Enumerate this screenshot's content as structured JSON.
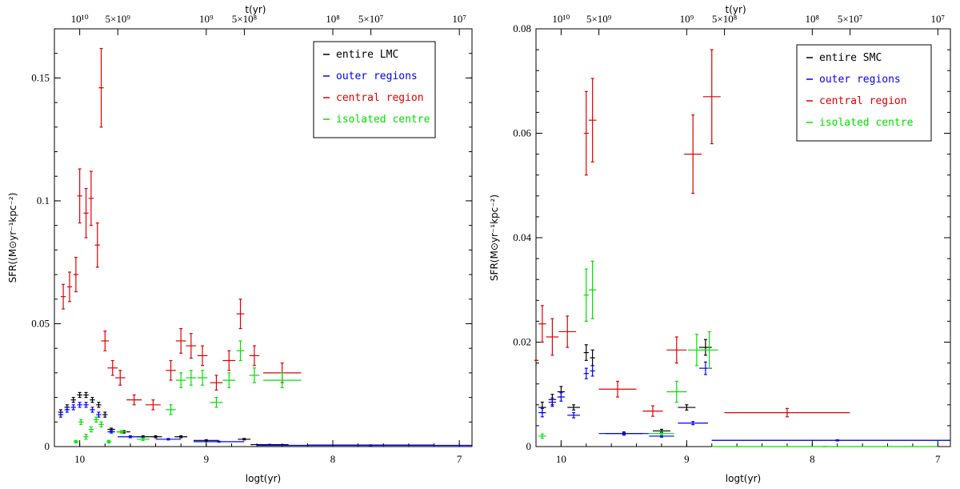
{
  "chart_data": [
    {
      "type": "scatter",
      "title": "",
      "xlabel": "logt(yr)",
      "ylabel": "SFR((M⊙yr⁻¹kpc⁻²)",
      "top_axis_label": "t(yr)",
      "top_ticks": [
        {
          "pos": 10.0,
          "label": "10¹⁰"
        },
        {
          "pos": 9.699,
          "label": "5×10⁹"
        },
        {
          "pos": 9.0,
          "label": "10⁹"
        },
        {
          "pos": 8.699,
          "label": "5×10⁸"
        },
        {
          "pos": 8.0,
          "label": "10⁸"
        },
        {
          "pos": 7.699,
          "label": "5×10⁷"
        },
        {
          "pos": 7.0,
          "label": "10⁷"
        }
      ],
      "xlim": [
        10.2,
        6.9
      ],
      "ylim": [
        0,
        0.17
      ],
      "x_ticks": [
        {
          "v": 10,
          "label": "10"
        },
        {
          "v": 9,
          "label": "9"
        },
        {
          "v": 8,
          "label": "8"
        },
        {
          "v": 7,
          "label": "7"
        }
      ],
      "y_ticks": [
        {
          "v": 0,
          "label": "0"
        },
        {
          "v": 0.05,
          "label": "0.05"
        },
        {
          "v": 0.1,
          "label": "0.1"
        },
        {
          "v": 0.15,
          "label": "0.15"
        }
      ],
      "legend_position": "top-right",
      "series": [
        {
          "name": "entire LMC",
          "color": "#000000",
          "points": [
            {
              "x": 10.15,
              "y": 0.014,
              "xerr": 0.02,
              "yerr": 0.001
            },
            {
              "x": 10.1,
              "y": 0.016,
              "xerr": 0.02,
              "yerr": 0.001
            },
            {
              "x": 10.05,
              "y": 0.019,
              "xerr": 0.02,
              "yerr": 0.001
            },
            {
              "x": 10.0,
              "y": 0.021,
              "xerr": 0.02,
              "yerr": 0.001
            },
            {
              "x": 9.95,
              "y": 0.021,
              "xerr": 0.02,
              "yerr": 0.001
            },
            {
              "x": 9.9,
              "y": 0.019,
              "xerr": 0.02,
              "yerr": 0.001
            },
            {
              "x": 9.85,
              "y": 0.017,
              "xerr": 0.02,
              "yerr": 0.001
            },
            {
              "x": 9.8,
              "y": 0.013,
              "xerr": 0.02,
              "yerr": 0.001
            },
            {
              "x": 9.75,
              "y": 0.007,
              "xerr": 0.03,
              "yerr": 0.0005
            },
            {
              "x": 9.65,
              "y": 0.006,
              "xerr": 0.05,
              "yerr": 0.0005
            },
            {
              "x": 9.5,
              "y": 0.004,
              "xerr": 0.05,
              "yerr": 0.0004
            },
            {
              "x": 9.4,
              "y": 0.004,
              "xerr": 0.05,
              "yerr": 0.0004
            },
            {
              "x": 9.2,
              "y": 0.004,
              "xerr": 0.05,
              "yerr": 0.0004
            },
            {
              "x": 9.0,
              "y": 0.0025,
              "xerr": 0.1,
              "yerr": 0.0003
            },
            {
              "x": 8.7,
              "y": 0.003,
              "xerr": 0.05,
              "yerr": 0.0003
            },
            {
              "x": 8.5,
              "y": 0.0008,
              "xerr": 0.15,
              "yerr": 0.0001
            },
            {
              "x": 7.7,
              "y": 0.0006,
              "xerr": 0.5,
              "yerr": 0.0001
            }
          ]
        },
        {
          "name": "outer regions",
          "color": "#0000ff",
          "points": [
            {
              "x": 10.15,
              "y": 0.013,
              "xerr": 0.02,
              "yerr": 0.001
            },
            {
              "x": 10.1,
              "y": 0.015,
              "xerr": 0.02,
              "yerr": 0.001
            },
            {
              "x": 10.05,
              "y": 0.016,
              "xerr": 0.02,
              "yerr": 0.001
            },
            {
              "x": 10.0,
              "y": 0.017,
              "xerr": 0.02,
              "yerr": 0.001
            },
            {
              "x": 9.95,
              "y": 0.017,
              "xerr": 0.02,
              "yerr": 0.001
            },
            {
              "x": 9.9,
              "y": 0.015,
              "xerr": 0.02,
              "yerr": 0.001
            },
            {
              "x": 9.85,
              "y": 0.013,
              "xerr": 0.02,
              "yerr": 0.001
            },
            {
              "x": 9.75,
              "y": 0.006,
              "xerr": 0.03,
              "yerr": 0.0005
            },
            {
              "x": 9.6,
              "y": 0.004,
              "xerr": 0.1,
              "yerr": 0.0004
            },
            {
              "x": 9.3,
              "y": 0.003,
              "xerr": 0.1,
              "yerr": 0.0003
            },
            {
              "x": 8.9,
              "y": 0.002,
              "xerr": 0.2,
              "yerr": 0.0002
            },
            {
              "x": 7.7,
              "y": 0.0005,
              "xerr": 0.9,
              "yerr": 0.0001
            }
          ]
        },
        {
          "name": "central region",
          "color": "#e00000",
          "points": [
            {
              "x": 10.13,
              "y": 0.061,
              "xerr": 0.02,
              "yerr": 0.005
            },
            {
              "x": 10.08,
              "y": 0.065,
              "xerr": 0.02,
              "yerr": 0.006
            },
            {
              "x": 10.03,
              "y": 0.07,
              "xerr": 0.02,
              "yerr": 0.007
            },
            {
              "x": 10.0,
              "y": 0.102,
              "xerr": 0.02,
              "yerr": 0.011
            },
            {
              "x": 9.95,
              "y": 0.095,
              "xerr": 0.02,
              "yerr": 0.01
            },
            {
              "x": 9.91,
              "y": 0.101,
              "xerr": 0.02,
              "yerr": 0.011
            },
            {
              "x": 9.86,
              "y": 0.082,
              "xerr": 0.02,
              "yerr": 0.009
            },
            {
              "x": 9.83,
              "y": 0.146,
              "xerr": 0.02,
              "yerr": 0.016
            },
            {
              "x": 9.8,
              "y": 0.043,
              "xerr": 0.03,
              "yerr": 0.004
            },
            {
              "x": 9.74,
              "y": 0.032,
              "xerr": 0.04,
              "yerr": 0.003
            },
            {
              "x": 9.68,
              "y": 0.028,
              "xerr": 0.04,
              "yerr": 0.003
            },
            {
              "x": 9.57,
              "y": 0.019,
              "xerr": 0.06,
              "yerr": 0.002
            },
            {
              "x": 9.42,
              "y": 0.017,
              "xerr": 0.06,
              "yerr": 0.002
            },
            {
              "x": 9.28,
              "y": 0.031,
              "xerr": 0.04,
              "yerr": 0.004
            },
            {
              "x": 9.2,
              "y": 0.043,
              "xerr": 0.04,
              "yerr": 0.005
            },
            {
              "x": 9.12,
              "y": 0.041,
              "xerr": 0.04,
              "yerr": 0.005
            },
            {
              "x": 9.03,
              "y": 0.037,
              "xerr": 0.04,
              "yerr": 0.004
            },
            {
              "x": 8.92,
              "y": 0.026,
              "xerr": 0.05,
              "yerr": 0.003
            },
            {
              "x": 8.82,
              "y": 0.035,
              "xerr": 0.05,
              "yerr": 0.004
            },
            {
              "x": 8.73,
              "y": 0.054,
              "xerr": 0.03,
              "yerr": 0.006
            },
            {
              "x": 8.62,
              "y": 0.037,
              "xerr": 0.04,
              "yerr": 0.004
            },
            {
              "x": 8.4,
              "y": 0.03,
              "xerr": 0.15,
              "yerr": 0.004
            }
          ]
        },
        {
          "name": "isolated centre",
          "color": "#00e000",
          "points": [
            {
              "x": 10.03,
              "y": 0.002,
              "xerr": 0.02,
              "yerr": 0.0005
            },
            {
              "x": 9.99,
              "y": 0.01,
              "xerr": 0.02,
              "yerr": 0.001
            },
            {
              "x": 9.95,
              "y": 0.004,
              "xerr": 0.02,
              "yerr": 0.001
            },
            {
              "x": 9.91,
              "y": 0.007,
              "xerr": 0.02,
              "yerr": 0.001
            },
            {
              "x": 9.87,
              "y": 0.011,
              "xerr": 0.02,
              "yerr": 0.001
            },
            {
              "x": 9.83,
              "y": 0.009,
              "xerr": 0.02,
              "yerr": 0.001
            },
            {
              "x": 9.77,
              "y": 0.002,
              "xerr": 0.02,
              "yerr": 0.0005
            },
            {
              "x": 9.67,
              "y": 0.006,
              "xerr": 0.04,
              "yerr": 0.0005
            },
            {
              "x": 9.5,
              "y": 0.003,
              "xerr": 0.05,
              "yerr": 0.0005
            },
            {
              "x": 9.28,
              "y": 0.015,
              "xerr": 0.04,
              "yerr": 0.002
            },
            {
              "x": 9.2,
              "y": 0.027,
              "xerr": 0.04,
              "yerr": 0.003
            },
            {
              "x": 9.12,
              "y": 0.028,
              "xerr": 0.04,
              "yerr": 0.003
            },
            {
              "x": 9.03,
              "y": 0.028,
              "xerr": 0.04,
              "yerr": 0.003
            },
            {
              "x": 8.92,
              "y": 0.018,
              "xerr": 0.05,
              "yerr": 0.002
            },
            {
              "x": 8.82,
              "y": 0.027,
              "xerr": 0.05,
              "yerr": 0.003
            },
            {
              "x": 8.73,
              "y": 0.039,
              "xerr": 0.03,
              "yerr": 0.004
            },
            {
              "x": 8.62,
              "y": 0.029,
              "xerr": 0.04,
              "yerr": 0.003
            },
            {
              "x": 8.4,
              "y": 0.027,
              "xerr": 0.15,
              "yerr": 0.003
            }
          ]
        }
      ]
    },
    {
      "type": "scatter",
      "title": "",
      "xlabel": "logt(yr)",
      "ylabel": "SFR(M⊙yr⁻¹kpc⁻²)",
      "top_axis_label": "t(yr)",
      "top_ticks": [
        {
          "pos": 10.0,
          "label": "10¹⁰"
        },
        {
          "pos": 9.699,
          "label": "5×10⁹"
        },
        {
          "pos": 9.0,
          "label": "10⁹"
        },
        {
          "pos": 8.699,
          "label": "5×10⁸"
        },
        {
          "pos": 8.0,
          "label": "10⁸"
        },
        {
          "pos": 7.699,
          "label": "5×10⁷"
        },
        {
          "pos": 7.0,
          "label": "10⁷"
        }
      ],
      "xlim": [
        10.2,
        6.9
      ],
      "ylim": [
        0,
        0.08
      ],
      "x_ticks": [
        {
          "v": 10,
          "label": "10"
        },
        {
          "v": 9,
          "label": "9"
        },
        {
          "v": 8,
          "label": "8"
        },
        {
          "v": 7,
          "label": "7"
        }
      ],
      "y_ticks": [
        {
          "v": 0,
          "label": "0"
        },
        {
          "v": 0.02,
          "label": "0.02"
        },
        {
          "v": 0.04,
          "label": "0.04"
        },
        {
          "v": 0.06,
          "label": "0.06"
        },
        {
          "v": 0.08,
          "label": "0.08"
        }
      ],
      "legend_position": "top-right",
      "series": [
        {
          "name": "entire SMC",
          "color": "#000000",
          "points": [
            {
              "x": 10.15,
              "y": 0.0075,
              "xerr": 0.03,
              "yerr": 0.001
            },
            {
              "x": 10.07,
              "y": 0.009,
              "xerr": 0.03,
              "yerr": 0.001
            },
            {
              "x": 10.0,
              "y": 0.0105,
              "xerr": 0.03,
              "yerr": 0.001
            },
            {
              "x": 9.9,
              "y": 0.0075,
              "xerr": 0.05,
              "yerr": 0.0005
            },
            {
              "x": 9.8,
              "y": 0.018,
              "xerr": 0.02,
              "yerr": 0.0015
            },
            {
              "x": 9.75,
              "y": 0.017,
              "xerr": 0.02,
              "yerr": 0.0015
            },
            {
              "x": 9.5,
              "y": 0.0025,
              "xerr": 0.15,
              "yerr": 0.0003
            },
            {
              "x": 9.2,
              "y": 0.003,
              "xerr": 0.07,
              "yerr": 0.0003
            },
            {
              "x": 9.0,
              "y": 0.0075,
              "xerr": 0.07,
              "yerr": 0.0005
            },
            {
              "x": 8.85,
              "y": 0.019,
              "xerr": 0.05,
              "yerr": 0.0015
            },
            {
              "x": 7.8,
              "y": 0.0012,
              "xerr": 1.0,
              "yerr": 0.0001
            }
          ]
        },
        {
          "name": "outer regions",
          "color": "#0000ff",
          "points": [
            {
              "x": 10.15,
              "y": 0.0065,
              "xerr": 0.03,
              "yerr": 0.0008
            },
            {
              "x": 10.07,
              "y": 0.0085,
              "xerr": 0.03,
              "yerr": 0.0008
            },
            {
              "x": 10.0,
              "y": 0.0095,
              "xerr": 0.03,
              "yerr": 0.0008
            },
            {
              "x": 9.9,
              "y": 0.006,
              "xerr": 0.05,
              "yerr": 0.0005
            },
            {
              "x": 9.8,
              "y": 0.014,
              "xerr": 0.02,
              "yerr": 0.001
            },
            {
              "x": 9.75,
              "y": 0.0145,
              "xerr": 0.02,
              "yerr": 0.001
            },
            {
              "x": 9.5,
              "y": 0.0025,
              "xerr": 0.2,
              "yerr": 0.0002
            },
            {
              "x": 9.2,
              "y": 0.002,
              "xerr": 0.1,
              "yerr": 0.0002
            },
            {
              "x": 8.95,
              "y": 0.0045,
              "xerr": 0.12,
              "yerr": 0.0003
            },
            {
              "x": 8.85,
              "y": 0.015,
              "xerr": 0.05,
              "yerr": 0.0012
            },
            {
              "x": 7.8,
              "y": 0.0012,
              "xerr": 1.0,
              "yerr": 0.0001
            }
          ]
        },
        {
          "name": "central region",
          "color": "#e00000",
          "points": [
            {
              "x": 10.2,
              "y": 0.0165,
              "xerr": 0.02,
              "yerr": 0.0
            },
            {
              "x": 10.15,
              "y": 0.0235,
              "xerr": 0.03,
              "yerr": 0.0035
            },
            {
              "x": 10.07,
              "y": 0.021,
              "xerr": 0.05,
              "yerr": 0.0035
            },
            {
              "x": 9.95,
              "y": 0.022,
              "xerr": 0.07,
              "yerr": 0.003
            },
            {
              "x": 9.8,
              "y": 0.06,
              "xerr": 0.02,
              "yerr": 0.008
            },
            {
              "x": 9.75,
              "y": 0.0625,
              "xerr": 0.03,
              "yerr": 0.008
            },
            {
              "x": 9.55,
              "y": 0.011,
              "xerr": 0.15,
              "yerr": 0.0015
            },
            {
              "x": 9.27,
              "y": 0.0068,
              "xerr": 0.08,
              "yerr": 0.001
            },
            {
              "x": 9.08,
              "y": 0.0185,
              "xerr": 0.08,
              "yerr": 0.0025
            },
            {
              "x": 8.95,
              "y": 0.056,
              "xerr": 0.07,
              "yerr": 0.0075
            },
            {
              "x": 8.8,
              "y": 0.067,
              "xerr": 0.07,
              "yerr": 0.009
            },
            {
              "x": 8.2,
              "y": 0.0065,
              "xerr": 0.5,
              "yerr": 0.0008
            }
          ]
        },
        {
          "name": "isolated centre",
          "color": "#00e000",
          "points": [
            {
              "x": 10.15,
              "y": 0.002,
              "xerr": 0.03,
              "yerr": 0.0004
            },
            {
              "x": 9.8,
              "y": 0.029,
              "xerr": 0.02,
              "yerr": 0.005
            },
            {
              "x": 9.75,
              "y": 0.03,
              "xerr": 0.03,
              "yerr": 0.0055
            },
            {
              "x": 9.2,
              "y": 0.0025,
              "xerr": 0.1,
              "yerr": 0.0003
            },
            {
              "x": 9.08,
              "y": 0.0105,
              "xerr": 0.08,
              "yerr": 0.002
            },
            {
              "x": 8.92,
              "y": 0.0185,
              "xerr": 0.07,
              "yerr": 0.003
            },
            {
              "x": 8.82,
              "y": 0.0185,
              "xerr": 0.07,
              "yerr": 0.0035
            },
            {
              "x": 7.9,
              "y": 0.0,
              "xerr": 0.9,
              "yerr": 0.0
            }
          ]
        }
      ]
    }
  ]
}
